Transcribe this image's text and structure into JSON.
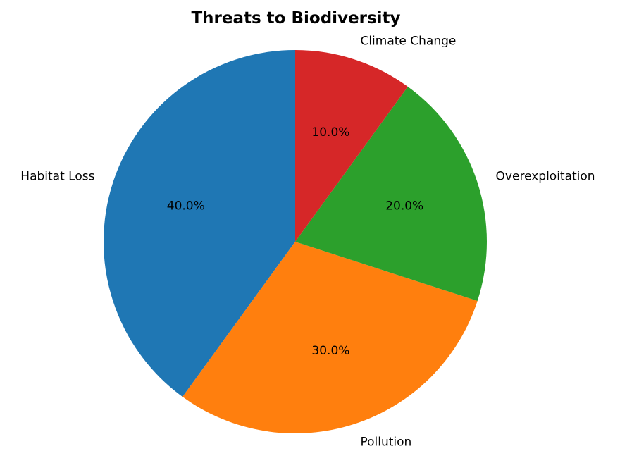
{
  "chart_data": {
    "type": "pie",
    "title": "Threats to Biodiversity",
    "categories": [
      "Habitat Loss",
      "Pollution",
      "Overexploitation",
      "Climate Change"
    ],
    "values": [
      40,
      30,
      20,
      10
    ],
    "value_labels": [
      "40.0%",
      "30.0%",
      "20.0%",
      "10.0%"
    ],
    "colors": [
      "#1f77b4",
      "#ff7f0e",
      "#2ca02c",
      "#d62728"
    ],
    "start_angle_deg": 90,
    "direction": "counterclockwise",
    "legend": "none"
  }
}
